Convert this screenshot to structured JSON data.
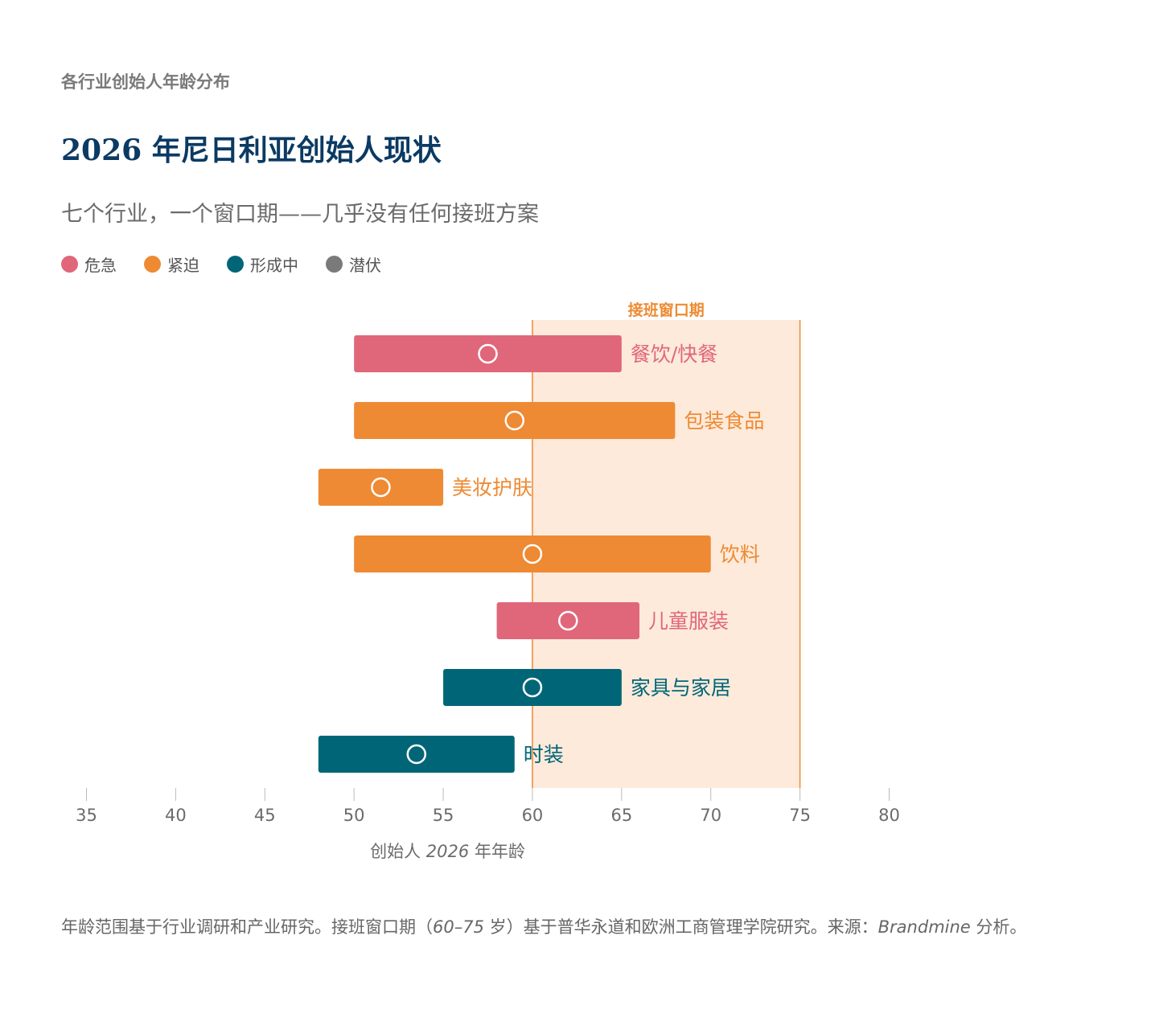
{
  "header": {
    "kicker": "各行业创始人年龄分布",
    "title": "2026 年尼日利亚创始人现状",
    "subtitle": "七个行业，一个窗口期——几乎没有任何接班方案"
  },
  "legend": [
    {
      "label": "危急",
      "color": "#e0677a"
    },
    {
      "label": "紧迫",
      "color": "#ee8a33"
    },
    {
      "label": "形成中",
      "color": "#006677"
    },
    {
      "label": "潜伏",
      "color": "#7a7a7a"
    }
  ],
  "colors": {
    "critical": "#e0677a",
    "urgent": "#ee8a33",
    "forming": "#006677",
    "latent": "#7a7a7a",
    "window_fill": "#fdeadb",
    "window_line": "#ee8a33",
    "axis_text": "#6b6b6b"
  },
  "chart_data": {
    "type": "range_bar",
    "xlabel_prefix": "创始人",
    "xlabel_year": "2026",
    "xlabel_suffix": "年年龄",
    "xlim": [
      35,
      80
    ],
    "xticks": [
      35,
      40,
      45,
      50,
      55,
      60,
      65,
      70,
      75,
      80
    ],
    "window": {
      "label": "接班窗口期",
      "start": 60,
      "end": 75
    },
    "series": [
      {
        "label": "餐饮/快餐",
        "min": 50,
        "max": 65,
        "median": 57.5,
        "status": "critical"
      },
      {
        "label": "包装食品",
        "min": 50,
        "max": 68,
        "median": 59,
        "status": "urgent"
      },
      {
        "label": "美妆护肤",
        "min": 48,
        "max": 55,
        "median": 51.5,
        "status": "urgent"
      },
      {
        "label": "饮料",
        "min": 50,
        "max": 70,
        "median": 60,
        "status": "urgent"
      },
      {
        "label": "儿童服装",
        "min": 58,
        "max": 66,
        "median": 62,
        "status": "critical"
      },
      {
        "label": "家具与家居",
        "min": 55,
        "max": 65,
        "median": 60,
        "status": "forming"
      },
      {
        "label": "时装",
        "min": 48,
        "max": 59,
        "median": 53.5,
        "status": "forming"
      }
    ]
  },
  "footnote": {
    "part1": "年龄范围基于行业调研和产业研究。接班窗口期（",
    "range": "60–75",
    "part2": " 岁）基于普华永道和欧洲工商管理学院研究。来源：",
    "source": "Brandmine",
    "part3": " 分析。"
  }
}
